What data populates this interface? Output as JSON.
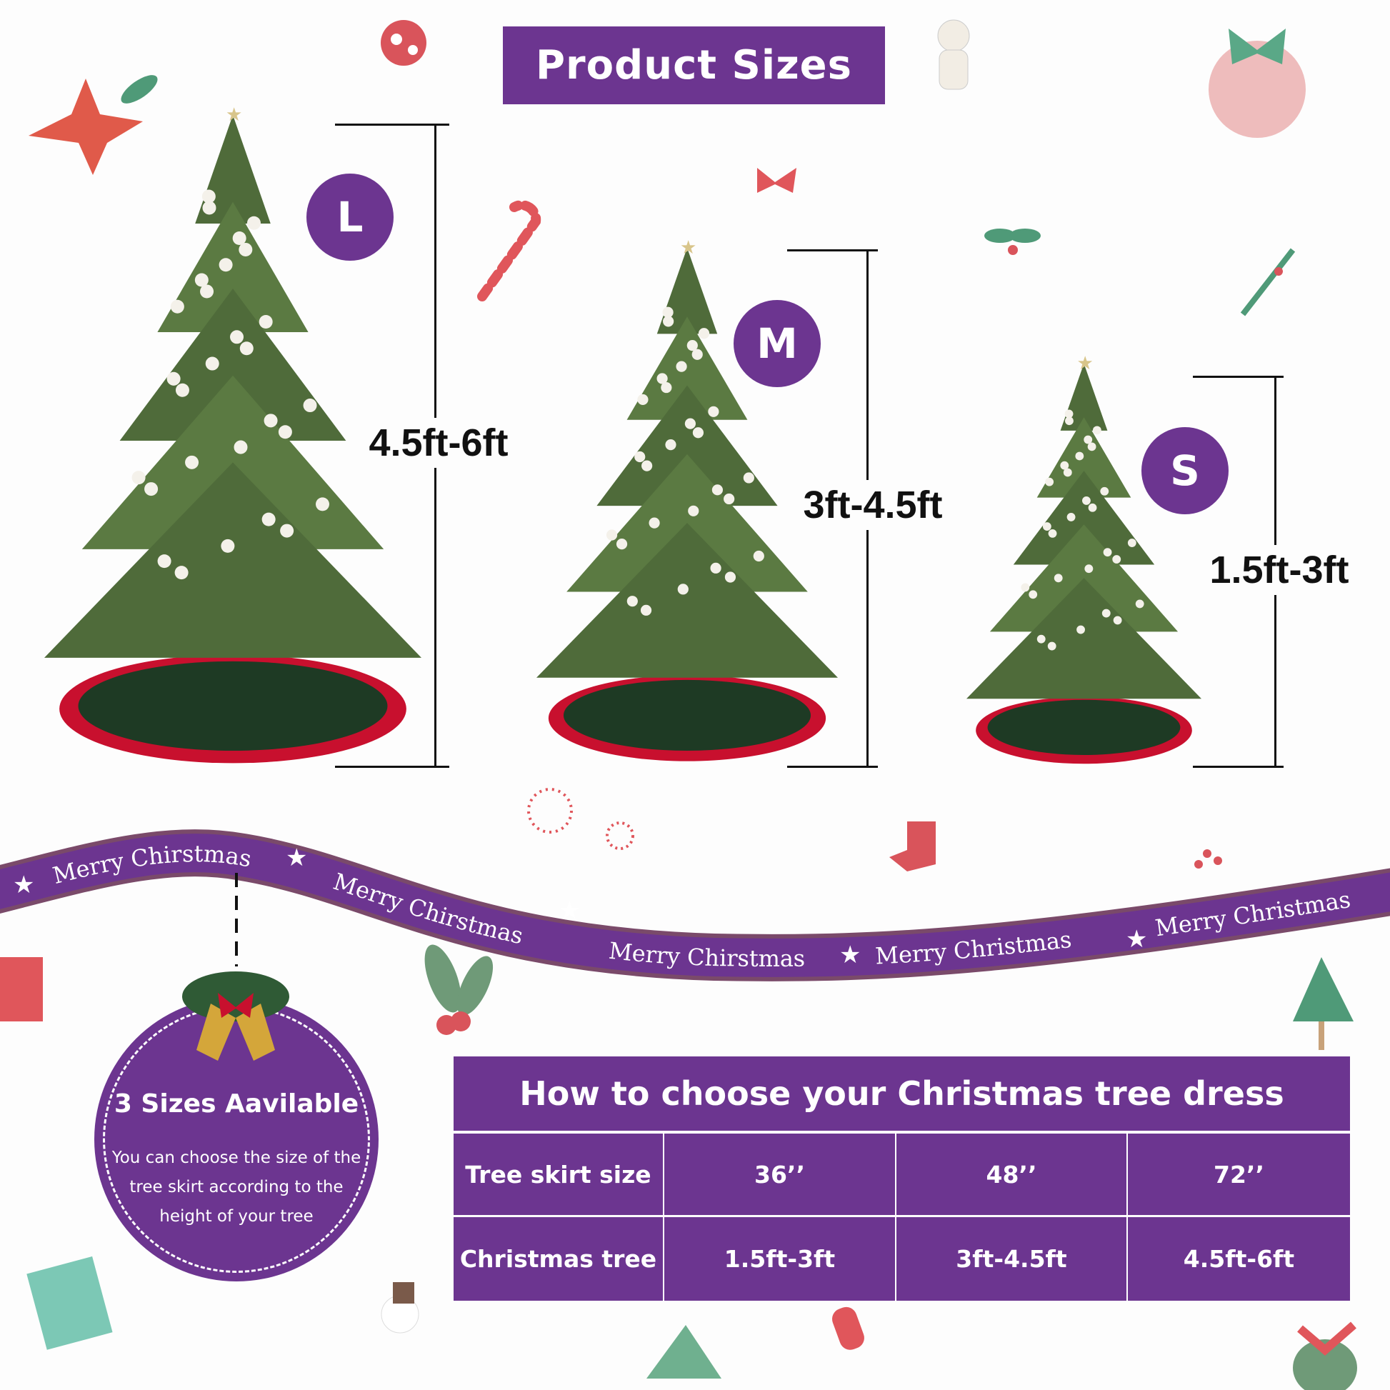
{
  "header": {
    "title": "Product Sizes"
  },
  "sizes": [
    {
      "badge": "L",
      "height_range": "4.5ft-6ft"
    },
    {
      "badge": "M",
      "height_range": "3ft-4.5ft"
    },
    {
      "badge": "S",
      "height_range": "1.5ft-3ft"
    }
  ],
  "ribbon": {
    "labels": [
      "Merry Chirstmas",
      "Merry Chirstmas",
      "Merry Chirstmas",
      "Merry Christmas",
      "Merry Christmas"
    ],
    "color": "#6c3590"
  },
  "info": {
    "title": "3 Sizes Aavilable",
    "lines": [
      "You can choose the size of the",
      "tree skirt according to the",
      "height of your tree"
    ]
  },
  "table": {
    "title": "How to choose your Christmas tree dress",
    "rows": [
      {
        "label": "Tree skirt size",
        "values": [
          "36’’",
          "48’’",
          "72’’"
        ]
      },
      {
        "label": "Christmas tree",
        "values": [
          "1.5ft-3ft",
          "3ft-4.5ft",
          "4.5ft-6ft"
        ]
      }
    ]
  },
  "colors": {
    "accent": "#6c3590",
    "tree": "#4f6b3a",
    "skirt_red": "#c8102e",
    "skirt_green": "#1e3a24"
  }
}
